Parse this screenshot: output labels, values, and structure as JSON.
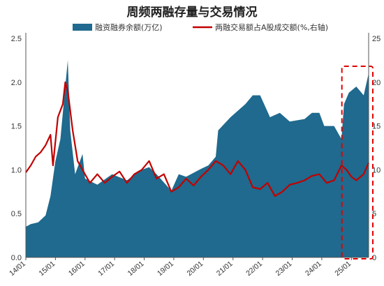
{
  "chart_data": {
    "type": "area+line",
    "title": "周频两融存量与交易情况",
    "legend_position": "top-center",
    "grid": false,
    "x_ticks": [
      "14/01",
      "15/01",
      "16/01",
      "17/01",
      "18/01",
      "19/01",
      "20/01",
      "21/01",
      "22/01",
      "23/01",
      "24/01",
      "25/01"
    ],
    "y_left": {
      "lim": [
        0,
        2.5
      ],
      "ticks": [
        "0.0",
        "0.5",
        "1.0",
        "1.5",
        "2.0",
        "2.5"
      ]
    },
    "y_right": {
      "lim": [
        0,
        25
      ],
      "ticks": [
        "0",
        "5",
        "10",
        "15",
        "20",
        "25"
      ]
    },
    "series": [
      {
        "name": "融资融券余额(万亿)",
        "type": "area",
        "axis": "left",
        "color": "#1F6A8E",
        "points": [
          [
            "2014-01",
            0.35
          ],
          [
            "2014-03",
            0.38
          ],
          [
            "2014-06",
            0.4
          ],
          [
            "2014-09",
            0.48
          ],
          [
            "2014-11",
            0.7
          ],
          [
            "2015-01",
            1.1
          ],
          [
            "2015-03",
            1.35
          ],
          [
            "2015-05",
            1.95
          ],
          [
            "2015-06",
            2.25
          ],
          [
            "2015-07",
            1.45
          ],
          [
            "2015-09",
            0.95
          ],
          [
            "2015-12",
            1.18
          ],
          [
            "2016-01",
            0.9
          ],
          [
            "2016-06",
            0.83
          ],
          [
            "2016-12",
            0.95
          ],
          [
            "2017-06",
            0.88
          ],
          [
            "2017-12",
            1.0
          ],
          [
            "2018-03",
            1.03
          ],
          [
            "2018-06",
            0.95
          ],
          [
            "2018-12",
            0.76
          ],
          [
            "2019-03",
            0.95
          ],
          [
            "2019-06",
            0.92
          ],
          [
            "2019-12",
            1.01
          ],
          [
            "2020-03",
            1.05
          ],
          [
            "2020-06",
            1.15
          ],
          [
            "2020-07",
            1.45
          ],
          [
            "2020-12",
            1.6
          ],
          [
            "2021-06",
            1.75
          ],
          [
            "2021-09",
            1.85
          ],
          [
            "2021-12",
            1.85
          ],
          [
            "2022-04",
            1.6
          ],
          [
            "2022-08",
            1.65
          ],
          [
            "2022-12",
            1.55
          ],
          [
            "2023-06",
            1.58
          ],
          [
            "2023-09",
            1.65
          ],
          [
            "2023-12",
            1.65
          ],
          [
            "2024-02",
            1.5
          ],
          [
            "2024-06",
            1.5
          ],
          [
            "2024-09",
            1.35
          ],
          [
            "2024-10",
            1.75
          ],
          [
            "2024-12",
            1.88
          ],
          [
            "2025-03",
            1.95
          ],
          [
            "2025-06",
            1.85
          ],
          [
            "2025-08",
            2.1
          ]
        ]
      },
      {
        "name": "两融交易额占A股成交额(%,右轴)",
        "type": "line",
        "axis": "right",
        "color": "#C00000",
        "points": [
          [
            "2014-01",
            9.7
          ],
          [
            "2014-03",
            10.5
          ],
          [
            "2014-05",
            11.5
          ],
          [
            "2014-07",
            12.0
          ],
          [
            "2014-09",
            12.8
          ],
          [
            "2014-11",
            14.0
          ],
          [
            "2014-12",
            10.5
          ],
          [
            "2015-02",
            16.0
          ],
          [
            "2015-04",
            17.5
          ],
          [
            "2015-05",
            20.0
          ],
          [
            "2015-06",
            19.0
          ],
          [
            "2015-08",
            14.5
          ],
          [
            "2015-10",
            11.0
          ],
          [
            "2015-12",
            10.0
          ],
          [
            "2016-03",
            8.5
          ],
          [
            "2016-06",
            9.5
          ],
          [
            "2016-09",
            8.5
          ],
          [
            "2016-12",
            9.2
          ],
          [
            "2017-03",
            9.8
          ],
          [
            "2017-06",
            8.5
          ],
          [
            "2017-09",
            9.5
          ],
          [
            "2017-12",
            10.0
          ],
          [
            "2018-03",
            11.0
          ],
          [
            "2018-06",
            9.0
          ],
          [
            "2018-09",
            9.5
          ],
          [
            "2018-12",
            7.5
          ],
          [
            "2019-03",
            8.0
          ],
          [
            "2019-06",
            9.0
          ],
          [
            "2019-09",
            8.2
          ],
          [
            "2019-12",
            9.2
          ],
          [
            "2020-03",
            10.0
          ],
          [
            "2020-06",
            11.0
          ],
          [
            "2020-09",
            10.5
          ],
          [
            "2020-12",
            9.5
          ],
          [
            "2021-03",
            11.0
          ],
          [
            "2021-06",
            10.0
          ],
          [
            "2021-09",
            8.0
          ],
          [
            "2021-12",
            7.8
          ],
          [
            "2022-03",
            8.5
          ],
          [
            "2022-06",
            7.0
          ],
          [
            "2022-09",
            7.5
          ],
          [
            "2022-12",
            8.3
          ],
          [
            "2023-03",
            8.5
          ],
          [
            "2023-06",
            8.8
          ],
          [
            "2023-09",
            9.3
          ],
          [
            "2023-12",
            9.5
          ],
          [
            "2024-03",
            8.5
          ],
          [
            "2024-06",
            8.8
          ],
          [
            "2024-09",
            10.5
          ],
          [
            "2024-11",
            10.0
          ],
          [
            "2025-01",
            9.2
          ],
          [
            "2025-03",
            8.8
          ],
          [
            "2025-06",
            9.5
          ],
          [
            "2025-08",
            10.8
          ]
        ]
      }
    ],
    "annotations": [
      {
        "type": "dashed-rect",
        "color": "#E00000",
        "x_range": [
          "2024-10",
          "2025-08"
        ],
        "y_range_left": [
          0,
          2.15
        ]
      }
    ]
  }
}
